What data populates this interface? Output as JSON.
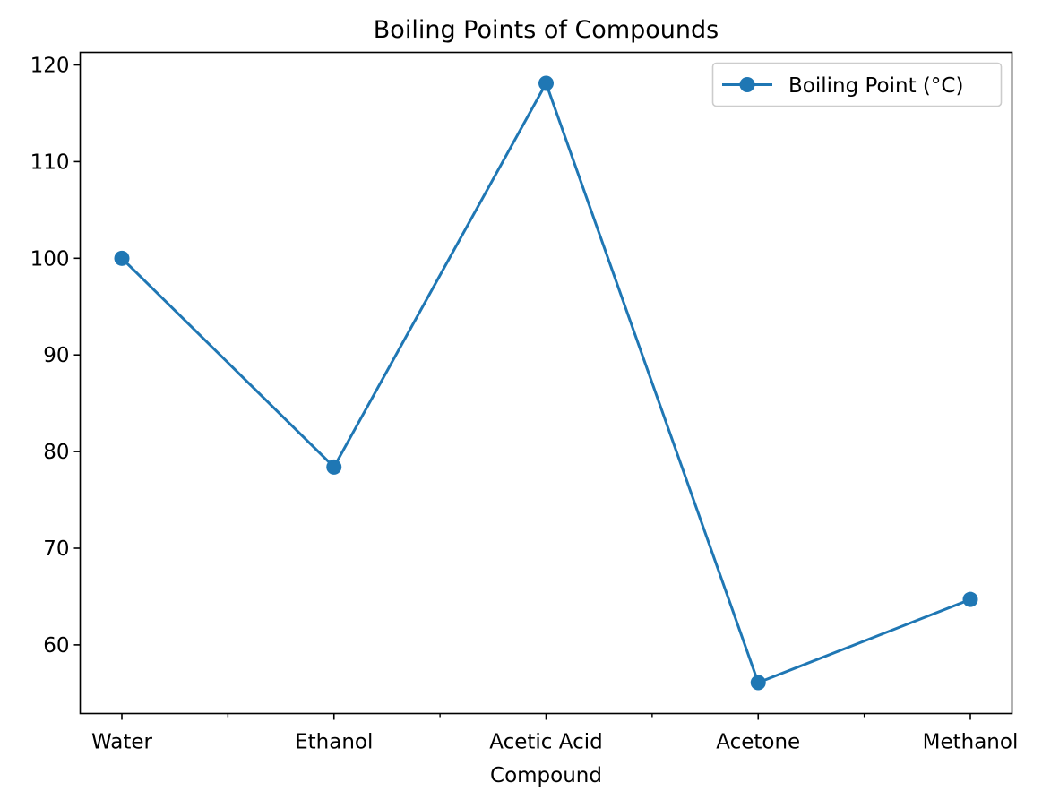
{
  "chart_data": {
    "type": "line",
    "title": "Boiling Points of Compounds",
    "xlabel": "Compound",
    "ylabel": "",
    "categories": [
      "Water",
      "Ethanol",
      "Acetic Acid",
      "Acetone",
      "Methanol"
    ],
    "series": [
      {
        "name": "Boiling Point (°C)",
        "values": [
          100,
          78.4,
          118.1,
          56.1,
          64.7
        ],
        "color": "#1f77b4",
        "marker": "circle"
      }
    ],
    "y_ticks": [
      60,
      70,
      80,
      90,
      100,
      110,
      120
    ],
    "ylim": [
      52.9,
      121.3
    ],
    "grid": false,
    "legend_position": "top-right"
  }
}
